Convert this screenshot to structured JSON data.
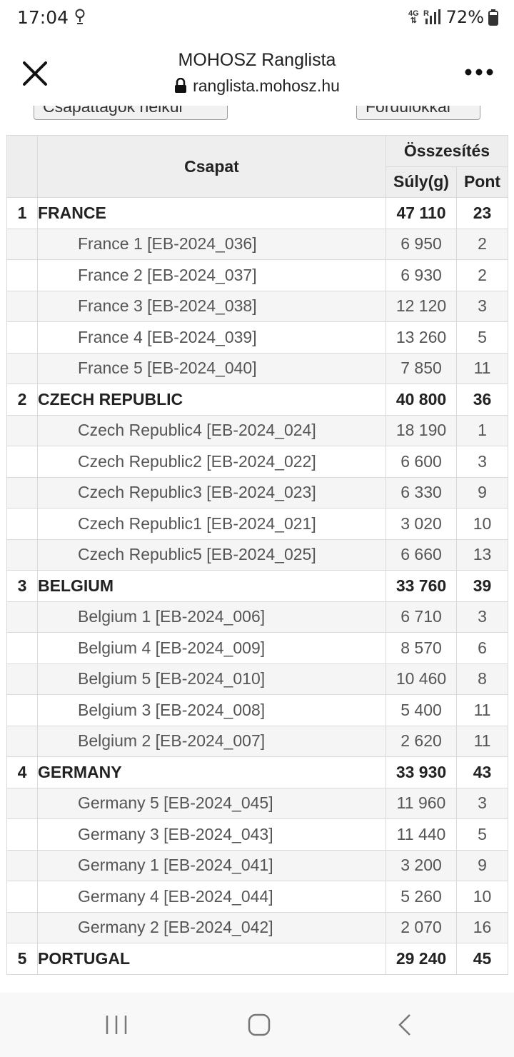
{
  "status_bar": {
    "time": "17:04",
    "network": "4G",
    "signal": "R",
    "battery": "72%"
  },
  "browser": {
    "title": "MOHOSZ Ranglista",
    "url": "ranglista.mohosz.hu"
  },
  "top_buttons": {
    "left": "Csapattagok nélkül",
    "right": "Fordulókkal"
  },
  "table": {
    "header_team": "Csapat",
    "header_group": "Összesítés",
    "header_weight": "Súly(g)",
    "header_points": "Pont",
    "teams": [
      {
        "rank": "1",
        "name": "FRANCE",
        "weight": "47 110",
        "points": "23",
        "members": [
          {
            "name": "France 1 [EB-2024_036]",
            "weight": "6 950",
            "points": "2"
          },
          {
            "name": "France 2 [EB-2024_037]",
            "weight": "6 930",
            "points": "2"
          },
          {
            "name": "France 3 [EB-2024_038]",
            "weight": "12 120",
            "points": "3"
          },
          {
            "name": "France 4 [EB-2024_039]",
            "weight": "13 260",
            "points": "5"
          },
          {
            "name": "France 5 [EB-2024_040]",
            "weight": "7 850",
            "points": "11"
          }
        ]
      },
      {
        "rank": "2",
        "name": "CZECH REPUBLIC",
        "weight": "40 800",
        "points": "36",
        "members": [
          {
            "name": "Czech Republic4 [EB-2024_024]",
            "weight": "18 190",
            "points": "1"
          },
          {
            "name": "Czech Republic2 [EB-2024_022]",
            "weight": "6 600",
            "points": "3"
          },
          {
            "name": "Czech Republic3 [EB-2024_023]",
            "weight": "6 330",
            "points": "9"
          },
          {
            "name": "Czech Republic1 [EB-2024_021]",
            "weight": "3 020",
            "points": "10"
          },
          {
            "name": "Czech Republic5 [EB-2024_025]",
            "weight": "6 660",
            "points": "13"
          }
        ]
      },
      {
        "rank": "3",
        "name": "BELGIUM",
        "weight": "33 760",
        "points": "39",
        "members": [
          {
            "name": "Belgium 1 [EB-2024_006]",
            "weight": "6 710",
            "points": "3"
          },
          {
            "name": "Belgium 4 [EB-2024_009]",
            "weight": "8 570",
            "points": "6"
          },
          {
            "name": "Belgium 5 [EB-2024_010]",
            "weight": "10 460",
            "points": "8"
          },
          {
            "name": "Belgium 3 [EB-2024_008]",
            "weight": "5 400",
            "points": "11"
          },
          {
            "name": "Belgium 2 [EB-2024_007]",
            "weight": "2 620",
            "points": "11"
          }
        ]
      },
      {
        "rank": "4",
        "name": "GERMANY",
        "weight": "33 930",
        "points": "43",
        "members": [
          {
            "name": "Germany 5 [EB-2024_045]",
            "weight": "11 960",
            "points": "3"
          },
          {
            "name": "Germany 3 [EB-2024_043]",
            "weight": "11 440",
            "points": "5"
          },
          {
            "name": "Germany 1 [EB-2024_041]",
            "weight": "3 200",
            "points": "9"
          },
          {
            "name": "Germany 4 [EB-2024_044]",
            "weight": "5 260",
            "points": "10"
          },
          {
            "name": "Germany 2 [EB-2024_042]",
            "weight": "2 070",
            "points": "16"
          }
        ]
      },
      {
        "rank": "5",
        "name": "PORTUGAL",
        "weight": "29 240",
        "points": "45",
        "members": []
      }
    ]
  }
}
